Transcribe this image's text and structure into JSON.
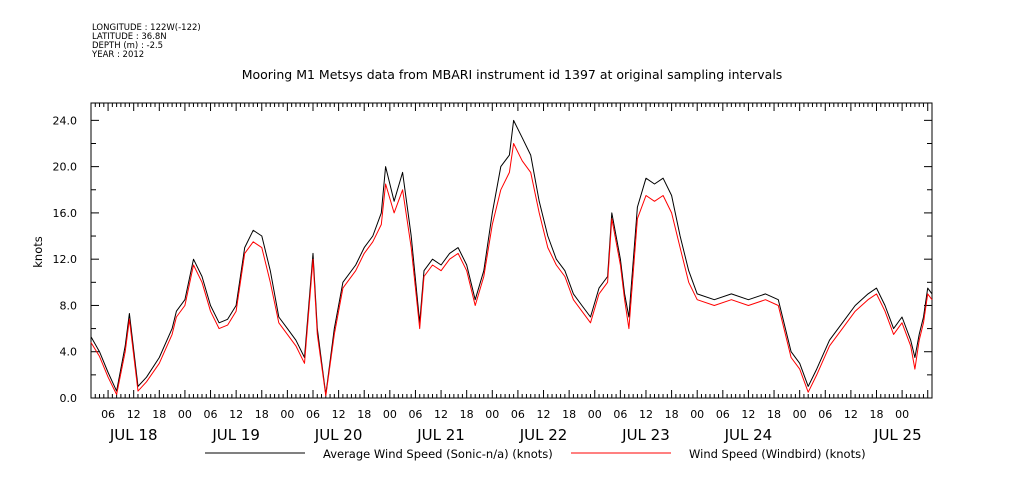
{
  "header": {
    "lines": [
      "LONGITUDE : 122W(-122)",
      "LATITUDE : 36.8N",
      "DEPTH (m) : -2.5",
      "YEAR : 2012"
    ]
  },
  "chart_data": {
    "type": "line",
    "title": "Mooring M1 Metsys data from MBARI instrument id 1397 at original sampling intervals",
    "ylabel": "knots",
    "ylim": [
      0,
      25.5
    ],
    "yticks": [
      0,
      4,
      8,
      12,
      16,
      20,
      24
    ],
    "ytick_labels": [
      "0.0",
      "4.0",
      "8.0",
      "12.0",
      "16.0",
      "20.0",
      "24.0"
    ],
    "xlim": [
      "2012-07-17 02:00",
      "2012-07-25 07:00"
    ],
    "hour_ticks": [
      {
        "t": "2012-07-17 06:00",
        "label": "06"
      },
      {
        "t": "2012-07-17 12:00",
        "label": "12"
      },
      {
        "t": "2012-07-17 18:00",
        "label": "18"
      },
      {
        "t": "2012-07-18 00:00",
        "label": "00"
      },
      {
        "t": "2012-07-18 06:00",
        "label": "06"
      },
      {
        "t": "2012-07-18 12:00",
        "label": "12"
      },
      {
        "t": "2012-07-18 18:00",
        "label": "18"
      },
      {
        "t": "2012-07-19 00:00",
        "label": "00"
      },
      {
        "t": "2012-07-19 06:00",
        "label": "06"
      },
      {
        "t": "2012-07-19 12:00",
        "label": "12"
      },
      {
        "t": "2012-07-19 18:00",
        "label": "18"
      },
      {
        "t": "2012-07-20 00:00",
        "label": "00"
      },
      {
        "t": "2012-07-20 06:00",
        "label": "06"
      },
      {
        "t": "2012-07-20 12:00",
        "label": "12"
      },
      {
        "t": "2012-07-20 18:00",
        "label": "18"
      },
      {
        "t": "2012-07-21 00:00",
        "label": "00"
      },
      {
        "t": "2012-07-21 06:00",
        "label": "06"
      },
      {
        "t": "2012-07-21 12:00",
        "label": "12"
      },
      {
        "t": "2012-07-21 18:00",
        "label": "18"
      },
      {
        "t": "2012-07-22 00:00",
        "label": "00"
      },
      {
        "t": "2012-07-22 06:00",
        "label": "06"
      },
      {
        "t": "2012-07-22 12:00",
        "label": "12"
      },
      {
        "t": "2012-07-22 18:00",
        "label": "18"
      },
      {
        "t": "2012-07-23 00:00",
        "label": "00"
      },
      {
        "t": "2012-07-23 06:00",
        "label": "06"
      },
      {
        "t": "2012-07-23 12:00",
        "label": "12"
      },
      {
        "t": "2012-07-23 18:00",
        "label": "18"
      },
      {
        "t": "2012-07-24 00:00",
        "label": "00"
      },
      {
        "t": "2012-07-24 06:00",
        "label": "06"
      },
      {
        "t": "2012-07-24 12:00",
        "label": "12"
      },
      {
        "t": "2012-07-24 18:00",
        "label": "18"
      },
      {
        "t": "2012-07-25 00:00",
        "label": "00"
      }
    ],
    "day_labels": [
      {
        "t": "2012-07-17 12:00",
        "label": "JUL 18"
      },
      {
        "t": "2012-07-18 12:00",
        "label": "JUL 19"
      },
      {
        "t": "2012-07-19 12:00",
        "label": "JUL 20"
      },
      {
        "t": "2012-07-20 12:00",
        "label": "JUL 21"
      },
      {
        "t": "2012-07-21 12:00",
        "label": "JUL 22"
      },
      {
        "t": "2012-07-22 12:00",
        "label": "JUL 23"
      },
      {
        "t": "2012-07-23 12:00",
        "label": "JUL 24"
      },
      {
        "t": "2012-07-24 23:00",
        "label": "JUL 25"
      }
    ],
    "series": [
      {
        "name": "Average Wind Speed (Sonic-n/a) (knots)",
        "color": "#000000",
        "points": [
          [
            "2012-07-17 02:00",
            5.3
          ],
          [
            "2012-07-17 04:00",
            4.0
          ],
          [
            "2012-07-17 06:00",
            2.2
          ],
          [
            "2012-07-17 08:00",
            0.6
          ],
          [
            "2012-07-17 10:00",
            4.5
          ],
          [
            "2012-07-17 11:00",
            7.3
          ],
          [
            "2012-07-17 13:00",
            1.0
          ],
          [
            "2012-07-17 15:00",
            1.8
          ],
          [
            "2012-07-17 18:00",
            3.5
          ],
          [
            "2012-07-17 21:00",
            6.0
          ],
          [
            "2012-07-17 22:00",
            7.5
          ],
          [
            "2012-07-18 00:00",
            8.5
          ],
          [
            "2012-07-18 02:00",
            12.0
          ],
          [
            "2012-07-18 04:00",
            10.5
          ],
          [
            "2012-07-18 06:00",
            8.0
          ],
          [
            "2012-07-18 08:00",
            6.5
          ],
          [
            "2012-07-18 10:00",
            6.8
          ],
          [
            "2012-07-18 12:00",
            8.0
          ],
          [
            "2012-07-18 14:00",
            13.0
          ],
          [
            "2012-07-18 16:00",
            14.5
          ],
          [
            "2012-07-18 18:00",
            14.0
          ],
          [
            "2012-07-18 20:00",
            11.0
          ],
          [
            "2012-07-18 22:00",
            7.0
          ],
          [
            "2012-07-19 00:00",
            6.0
          ],
          [
            "2012-07-19 02:00",
            5.0
          ],
          [
            "2012-07-19 04:00",
            3.5
          ],
          [
            "2012-07-19 06:00",
            12.5
          ],
          [
            "2012-07-19 07:00",
            6.0
          ],
          [
            "2012-07-19 09:00",
            0.3
          ],
          [
            "2012-07-19 11:00",
            6.0
          ],
          [
            "2012-07-19 13:00",
            10.0
          ],
          [
            "2012-07-19 16:00",
            11.5
          ],
          [
            "2012-07-19 18:00",
            13.0
          ],
          [
            "2012-07-19 20:00",
            14.0
          ],
          [
            "2012-07-19 22:00",
            16.0
          ],
          [
            "2012-07-19 23:00",
            20.0
          ],
          [
            "2012-07-20 01:00",
            17.0
          ],
          [
            "2012-07-20 03:00",
            19.5
          ],
          [
            "2012-07-20 05:00",
            14.0
          ],
          [
            "2012-07-20 07:00",
            6.5
          ],
          [
            "2012-07-20 08:00",
            11.0
          ],
          [
            "2012-07-20 10:00",
            12.0
          ],
          [
            "2012-07-20 12:00",
            11.5
          ],
          [
            "2012-07-20 14:00",
            12.5
          ],
          [
            "2012-07-20 16:00",
            13.0
          ],
          [
            "2012-07-20 18:00",
            11.5
          ],
          [
            "2012-07-20 20:00",
            8.5
          ],
          [
            "2012-07-20 22:00",
            11.0
          ],
          [
            "2012-07-21 00:00",
            16.0
          ],
          [
            "2012-07-21 02:00",
            20.0
          ],
          [
            "2012-07-21 04:00",
            21.0
          ],
          [
            "2012-07-21 05:00",
            24.0
          ],
          [
            "2012-07-21 07:00",
            22.5
          ],
          [
            "2012-07-21 09:00",
            21.0
          ],
          [
            "2012-07-21 11:00",
            17.0
          ],
          [
            "2012-07-21 13:00",
            14.0
          ],
          [
            "2012-07-21 15:00",
            12.0
          ],
          [
            "2012-07-21 17:00",
            11.0
          ],
          [
            "2012-07-21 19:00",
            9.0
          ],
          [
            "2012-07-21 21:00",
            8.0
          ],
          [
            "2012-07-21 23:00",
            7.0
          ],
          [
            "2012-07-22 01:00",
            9.5
          ],
          [
            "2012-07-22 03:00",
            10.5
          ],
          [
            "2012-07-22 04:00",
            16.0
          ],
          [
            "2012-07-22 06:00",
            12.0
          ],
          [
            "2012-07-22 07:00",
            9.0
          ],
          [
            "2012-07-22 08:00",
            7.0
          ],
          [
            "2012-07-22 10:00",
            16.5
          ],
          [
            "2012-07-22 12:00",
            19.0
          ],
          [
            "2012-07-22 14:00",
            18.5
          ],
          [
            "2012-07-22 16:00",
            19.0
          ],
          [
            "2012-07-22 18:00",
            17.5
          ],
          [
            "2012-07-22 20:00",
            14.0
          ],
          [
            "2012-07-22 22:00",
            11.0
          ],
          [
            "2012-07-23 00:00",
            9.0
          ],
          [
            "2012-07-23 04:00",
            8.5
          ],
          [
            "2012-07-23 08:00",
            9.0
          ],
          [
            "2012-07-23 12:00",
            8.5
          ],
          [
            "2012-07-23 16:00",
            9.0
          ],
          [
            "2012-07-23 19:00",
            8.5
          ],
          [
            "2012-07-23 22:00",
            4.0
          ],
          [
            "2012-07-24 00:00",
            3.0
          ],
          [
            "2012-07-24 02:00",
            1.0
          ],
          [
            "2012-07-24 04:00",
            2.5
          ],
          [
            "2012-07-24 07:00",
            5.0
          ],
          [
            "2012-07-24 10:00",
            6.5
          ],
          [
            "2012-07-24 13:00",
            8.0
          ],
          [
            "2012-07-24 16:00",
            9.0
          ],
          [
            "2012-07-24 18:00",
            9.5
          ],
          [
            "2012-07-24 20:00",
            8.0
          ],
          [
            "2012-07-24 22:00",
            6.0
          ],
          [
            "2012-07-24 23:59",
            7.0
          ],
          [
            "2012-07-25 02:00",
            5.0
          ],
          [
            "2012-07-25 03:00",
            3.5
          ],
          [
            "2012-07-25 04:00",
            5.5
          ],
          [
            "2012-07-25 05:00",
            7.0
          ],
          [
            "2012-07-25 06:00",
            9.5
          ],
          [
            "2012-07-25 07:00",
            9.0
          ]
        ]
      },
      {
        "name": "Wind Speed (Windbird) (knots)",
        "color": "#ff0000",
        "points": [
          [
            "2012-07-17 02:00",
            4.8
          ],
          [
            "2012-07-17 04:00",
            3.6
          ],
          [
            "2012-07-17 06:00",
            1.8
          ],
          [
            "2012-07-17 08:00",
            0.3
          ],
          [
            "2012-07-17 10:00",
            4.0
          ],
          [
            "2012-07-17 11:00",
            6.8
          ],
          [
            "2012-07-17 13:00",
            0.6
          ],
          [
            "2012-07-17 15:00",
            1.4
          ],
          [
            "2012-07-17 18:00",
            3.0
          ],
          [
            "2012-07-17 21:00",
            5.5
          ],
          [
            "2012-07-17 22:00",
            7.0
          ],
          [
            "2012-07-18 00:00",
            8.0
          ],
          [
            "2012-07-18 02:00",
            11.5
          ],
          [
            "2012-07-18 04:00",
            10.0
          ],
          [
            "2012-07-18 06:00",
            7.5
          ],
          [
            "2012-07-18 08:00",
            6.0
          ],
          [
            "2012-07-18 10:00",
            6.3
          ],
          [
            "2012-07-18 12:00",
            7.5
          ],
          [
            "2012-07-18 14:00",
            12.5
          ],
          [
            "2012-07-18 16:00",
            13.5
          ],
          [
            "2012-07-18 18:00",
            13.0
          ],
          [
            "2012-07-18 20:00",
            10.0
          ],
          [
            "2012-07-18 22:00",
            6.5
          ],
          [
            "2012-07-19 00:00",
            5.5
          ],
          [
            "2012-07-19 02:00",
            4.5
          ],
          [
            "2012-07-19 04:00",
            3.0
          ],
          [
            "2012-07-19 06:00",
            12.0
          ],
          [
            "2012-07-19 07:00",
            5.5
          ],
          [
            "2012-07-19 09:00",
            0.2
          ],
          [
            "2012-07-19 11:00",
            5.5
          ],
          [
            "2012-07-19 13:00",
            9.5
          ],
          [
            "2012-07-19 16:00",
            11.0
          ],
          [
            "2012-07-19 18:00",
            12.5
          ],
          [
            "2012-07-19 20:00",
            13.5
          ],
          [
            "2012-07-19 22:00",
            15.0
          ],
          [
            "2012-07-19 23:00",
            18.5
          ],
          [
            "2012-07-20 01:00",
            16.0
          ],
          [
            "2012-07-20 03:00",
            18.0
          ],
          [
            "2012-07-20 05:00",
            13.0
          ],
          [
            "2012-07-20 07:00",
            6.0
          ],
          [
            "2012-07-20 08:00",
            10.5
          ],
          [
            "2012-07-20 10:00",
            11.5
          ],
          [
            "2012-07-20 12:00",
            11.0
          ],
          [
            "2012-07-20 14:00",
            12.0
          ],
          [
            "2012-07-20 16:00",
            12.5
          ],
          [
            "2012-07-20 18:00",
            11.0
          ],
          [
            "2012-07-20 20:00",
            8.0
          ],
          [
            "2012-07-20 22:00",
            10.5
          ],
          [
            "2012-07-21 00:00",
            15.0
          ],
          [
            "2012-07-21 02:00",
            18.0
          ],
          [
            "2012-07-21 04:00",
            19.5
          ],
          [
            "2012-07-21 05:00",
            22.0
          ],
          [
            "2012-07-21 07:00",
            20.5
          ],
          [
            "2012-07-21 09:00",
            19.5
          ],
          [
            "2012-07-21 11:00",
            16.0
          ],
          [
            "2012-07-21 13:00",
            13.0
          ],
          [
            "2012-07-21 15:00",
            11.5
          ],
          [
            "2012-07-21 17:00",
            10.5
          ],
          [
            "2012-07-21 19:00",
            8.5
          ],
          [
            "2012-07-21 21:00",
            7.5
          ],
          [
            "2012-07-21 23:00",
            6.5
          ],
          [
            "2012-07-22 01:00",
            9.0
          ],
          [
            "2012-07-22 03:00",
            10.0
          ],
          [
            "2012-07-22 04:00",
            15.5
          ],
          [
            "2012-07-22 06:00",
            11.5
          ],
          [
            "2012-07-22 07:00",
            8.5
          ],
          [
            "2012-07-22 08:00",
            6.0
          ],
          [
            "2012-07-22 10:00",
            15.5
          ],
          [
            "2012-07-22 12:00",
            17.5
          ],
          [
            "2012-07-22 14:00",
            17.0
          ],
          [
            "2012-07-22 16:00",
            17.5
          ],
          [
            "2012-07-22 18:00",
            16.0
          ],
          [
            "2012-07-22 20:00",
            13.0
          ],
          [
            "2012-07-22 22:00",
            10.0
          ],
          [
            "2012-07-23 00:00",
            8.5
          ],
          [
            "2012-07-23 04:00",
            8.0
          ],
          [
            "2012-07-23 08:00",
            8.5
          ],
          [
            "2012-07-23 12:00",
            8.0
          ],
          [
            "2012-07-23 16:00",
            8.5
          ],
          [
            "2012-07-23 19:00",
            8.0
          ],
          [
            "2012-07-23 22:00",
            3.5
          ],
          [
            "2012-07-24 00:00",
            2.5
          ],
          [
            "2012-07-24 02:00",
            0.5
          ],
          [
            "2012-07-24 04:00",
            2.0
          ],
          [
            "2012-07-24 07:00",
            4.5
          ],
          [
            "2012-07-24 10:00",
            6.0
          ],
          [
            "2012-07-24 13:00",
            7.5
          ],
          [
            "2012-07-24 16:00",
            8.5
          ],
          [
            "2012-07-24 18:00",
            9.0
          ],
          [
            "2012-07-24 20:00",
            7.5
          ],
          [
            "2012-07-24 22:00",
            5.5
          ],
          [
            "2012-07-24 23:59",
            6.5
          ],
          [
            "2012-07-25 02:00",
            4.5
          ],
          [
            "2012-07-25 03:00",
            2.5
          ],
          [
            "2012-07-25 04:00",
            5.0
          ],
          [
            "2012-07-25 05:00",
            6.5
          ],
          [
            "2012-07-25 06:00",
            9.0
          ],
          [
            "2012-07-25 07:00",
            8.5
          ]
        ]
      }
    ]
  }
}
